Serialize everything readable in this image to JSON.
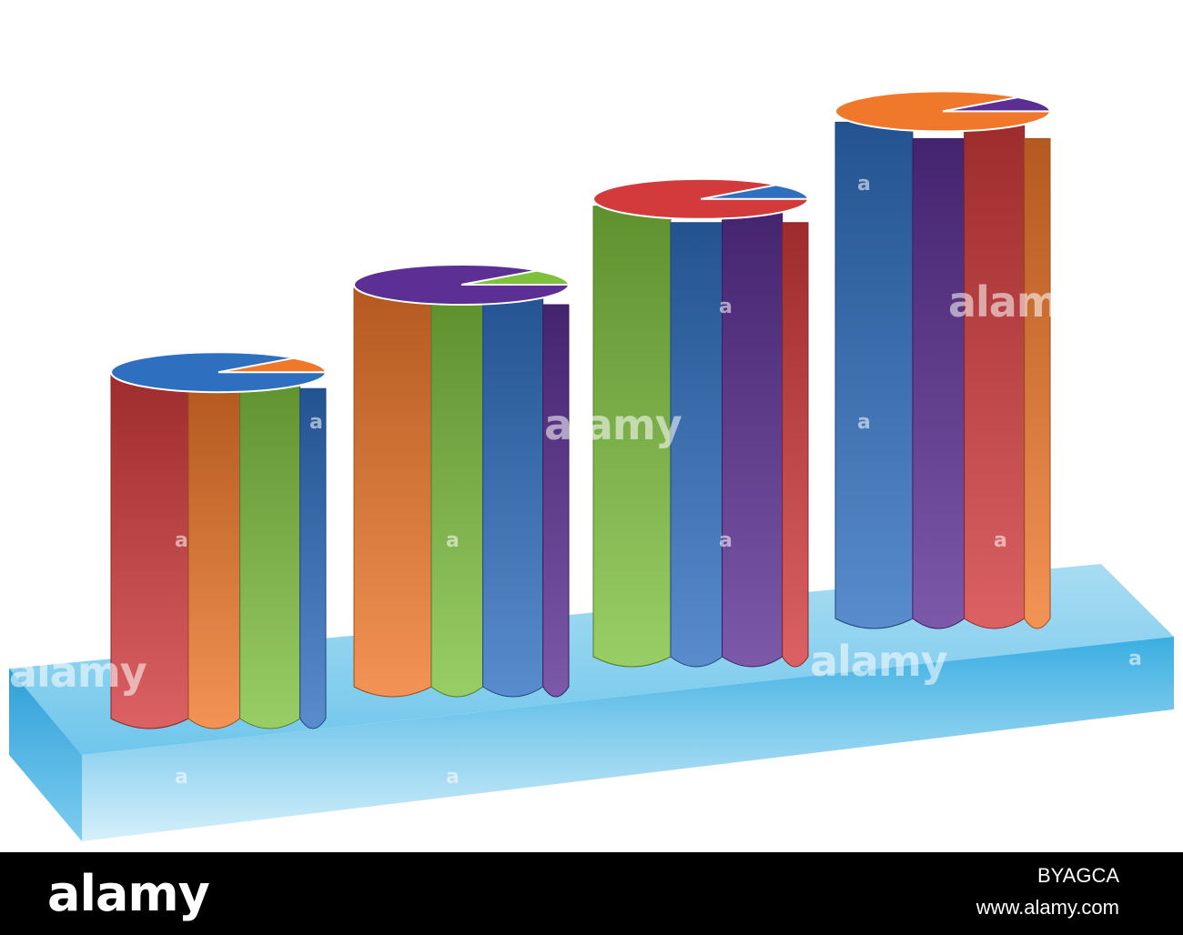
{
  "chart_data": {
    "type": "bar",
    "style": "3d-cylinder-stacked",
    "categories": [
      "",
      "",
      "",
      ""
    ],
    "values": [
      56,
      65,
      74,
      82
    ],
    "title": "",
    "xlabel": "",
    "ylabel": "",
    "grid": false,
    "legend": "none",
    "segment_colors": [
      "#d23a3c",
      "#f0782a",
      "#7fc13e",
      "#2f6fc0",
      "#5b2f94"
    ],
    "base_color": "#4fb8e6"
  },
  "watermark": {
    "text": "alamy",
    "letter": "a"
  },
  "footer": {
    "logo": "alamy",
    "image_id": "BYAGCA",
    "site": "www.alamy.com"
  }
}
